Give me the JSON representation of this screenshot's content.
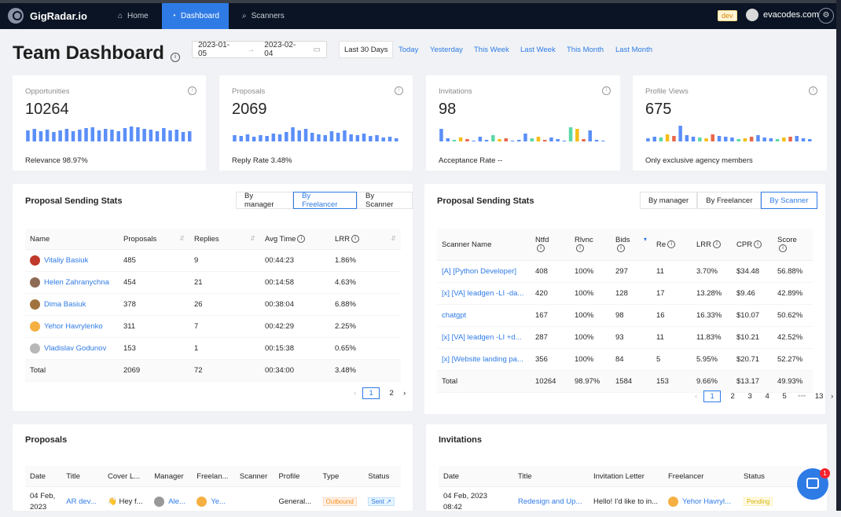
{
  "app": {
    "name": "GigRadar.io"
  },
  "nav": [
    {
      "label": "Home",
      "icon": "home-icon"
    },
    {
      "label": "Dashboard",
      "icon": "dashboard-icon"
    },
    {
      "label": "Scanners",
      "icon": "search-icon"
    }
  ],
  "header": {
    "env": "dev",
    "user": "evacodes.com"
  },
  "page": {
    "title": "Team Dashboard"
  },
  "filters": {
    "start": "2023-01-05",
    "end": "2023-02-04",
    "quick": [
      "Last 30 Days",
      "Today",
      "Yesterday",
      "This Week",
      "Last Week",
      "This Month",
      "Last Month"
    ],
    "active": "Last 30 Days"
  },
  "stats": [
    {
      "label": "Opportunities",
      "value": "10264",
      "foot": "Relevance  98.97%"
    },
    {
      "label": "Proposals",
      "value": "2069",
      "foot": "Reply Rate  3.48%"
    },
    {
      "label": "Invitations",
      "value": "98",
      "foot": "Acceptance Rate  --"
    },
    {
      "label": "Profile Views",
      "value": "675",
      "foot": "Only exclusive agency members"
    }
  ],
  "colors": {
    "accent": "#2f7be6",
    "topbar": "#0b1424"
  },
  "pss_left": {
    "title": "Proposal Sending Stats",
    "tabs": [
      "By manager",
      "By Freelancer",
      "By Scanner"
    ],
    "active": "By Freelancer",
    "headers": [
      "Name",
      "Proposals",
      "Replies",
      "Avg Time",
      "LRR"
    ],
    "rows": [
      [
        "Vitaliy Basiuk",
        "485",
        "9",
        "00:44:23",
        "1.86%"
      ],
      [
        "Helen Zahranychna",
        "454",
        "21",
        "00:14:58",
        "4.63%"
      ],
      [
        "Dima Basiuk",
        "378",
        "26",
        "00:38:04",
        "6.88%"
      ],
      [
        "Yehor Havrylenko",
        "311",
        "7",
        "00:42:29",
        "2.25%"
      ],
      [
        "Vladislav Godunov",
        "153",
        "1",
        "00:15:38",
        "0.65%"
      ]
    ],
    "total": [
      "Total",
      "2069",
      "72",
      "00:34:00",
      "3.48%"
    ],
    "pages": [
      "1",
      "2"
    ]
  },
  "pss_right": {
    "title": "Proposal Sending Stats",
    "tabs": [
      "By manager",
      "By Freelancer",
      "By Scanner"
    ],
    "active": "By Scanner",
    "headers": [
      "Scanner Name",
      "Ntfd",
      "Rlvnc",
      "Bids",
      "Re",
      "LRR",
      "CPR",
      "Score"
    ],
    "rows": [
      [
        "[A] [Python Developer]",
        "408",
        "100%",
        "297",
        "11",
        "3.70%",
        "$34.48",
        "56.88%"
      ],
      [
        "[x] [VA] leadgen -LI -da...",
        "420",
        "100%",
        "128",
        "17",
        "13.28%",
        "$9.46",
        "42.89%"
      ],
      [
        "chatgpt",
        "167",
        "100%",
        "98",
        "16",
        "16.33%",
        "$10.07",
        "50.62%"
      ],
      [
        "[x] [VA] leadgen -LI +d...",
        "287",
        "100%",
        "93",
        "11",
        "11.83%",
        "$10.21",
        "42.52%"
      ],
      [
        "[x] [Website landing pa...",
        "356",
        "100%",
        "84",
        "5",
        "5.95%",
        "$20.71",
        "52.27%"
      ]
    ],
    "total": [
      "Total",
      "10264",
      "98.97%",
      "1584",
      "153",
      "9.66%",
      "$13.17",
      "49.93%"
    ],
    "pages": [
      "1",
      "2",
      "3",
      "4",
      "5",
      "•••",
      "13"
    ]
  },
  "proposals": {
    "title": "Proposals",
    "headers": [
      "Date",
      "Title",
      "Cover L...",
      "Manager",
      "Freelan...",
      "Scanner",
      "Profile",
      "Type",
      "Status"
    ],
    "row": {
      "date": "04 Feb,",
      "date2": "2023",
      "title": "AR dev...",
      "cover": "Hey f...",
      "manager": "Ale...",
      "freelancer": "Ye...",
      "scanner": "",
      "profile": "General...",
      "type": "Outbound",
      "status": "Sent"
    }
  },
  "invitations": {
    "title": "Invitations",
    "headers": [
      "Date",
      "Title",
      "Invitation Letter",
      "Freelancer",
      "Status"
    ],
    "row": {
      "date": "04 Feb, 2023",
      "date2": "08:42",
      "title": "Redesign and Up...",
      "letter": "Hello! I'd like to in...",
      "freelancer": "Yehor Havryl...",
      "status": "Pending"
    }
  },
  "chat": {
    "badge": "1"
  }
}
